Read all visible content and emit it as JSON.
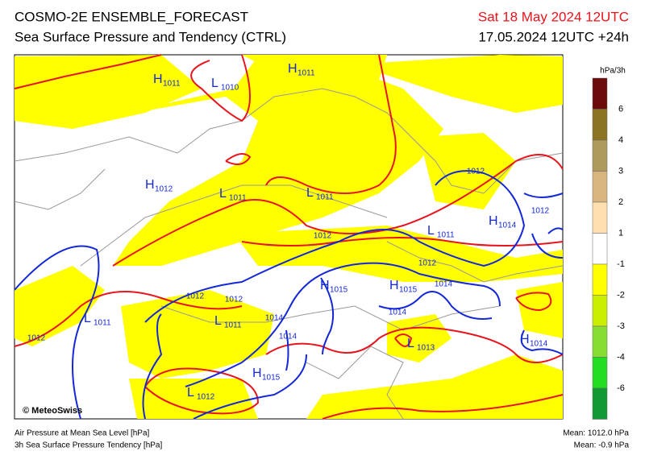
{
  "header": {
    "title": "COSMO-2E ENSEMBLE_FORECAST",
    "subtitle": "Sea Surface Pressure and Tendency (CTRL)",
    "valid_time": "Sat 18 May 2024 12UTC",
    "run": "17.05.2024 12UTC +24h"
  },
  "legend": {
    "unit": "hPa/3h",
    "colors": [
      "#6b0c0a",
      "#8b7424",
      "#ad9a5c",
      "#d8b57e",
      "#ffe0ae",
      "#ffffff",
      "#ffff00",
      "#ccee00",
      "#88dd33",
      "#22dd22",
      "#119933"
    ],
    "ticks": [
      "6",
      "4",
      "3",
      "2",
      "1",
      "-1",
      "-2",
      "-3",
      "-4",
      "-6"
    ]
  },
  "map": {
    "pressure_centers": [
      {
        "letter": "H",
        "value": "1011"
      },
      {
        "letter": "L",
        "value": "1010"
      },
      {
        "letter": "H",
        "value": "1011"
      },
      {
        "letter": "H",
        "value": "1012"
      },
      {
        "letter": "L",
        "value": "1011"
      },
      {
        "letter": "L",
        "value": "1011"
      },
      {
        "letter": "L",
        "value": "1011"
      },
      {
        "letter": "H",
        "value": "1014"
      },
      {
        "letter": "L",
        "value": "1011"
      },
      {
        "letter": "L",
        "value": "1011"
      },
      {
        "letter": "H",
        "value": "1015"
      },
      {
        "letter": "H",
        "value": "1015"
      },
      {
        "letter": "H",
        "value": "1015"
      },
      {
        "letter": "L",
        "value": "1013"
      },
      {
        "letter": "H",
        "value": "1014"
      },
      {
        "letter": "L",
        "value": "1012"
      }
    ],
    "isobar_labels": [
      "1012",
      "1012",
      "1012",
      "1012",
      "1014",
      "1014",
      "1012",
      "1012",
      "1012",
      "1014",
      "1014"
    ]
  },
  "footer": {
    "credit": "© MeteoSwiss",
    "line1": "Air Pressure at Mean Sea Level [hPa]",
    "line2": "3h Sea Surface Pressure Tendency [hPa]",
    "mean_pressure": "Mean: 1012.0 hPa",
    "mean_tendency": "Mean:   -0.9 hPa"
  }
}
